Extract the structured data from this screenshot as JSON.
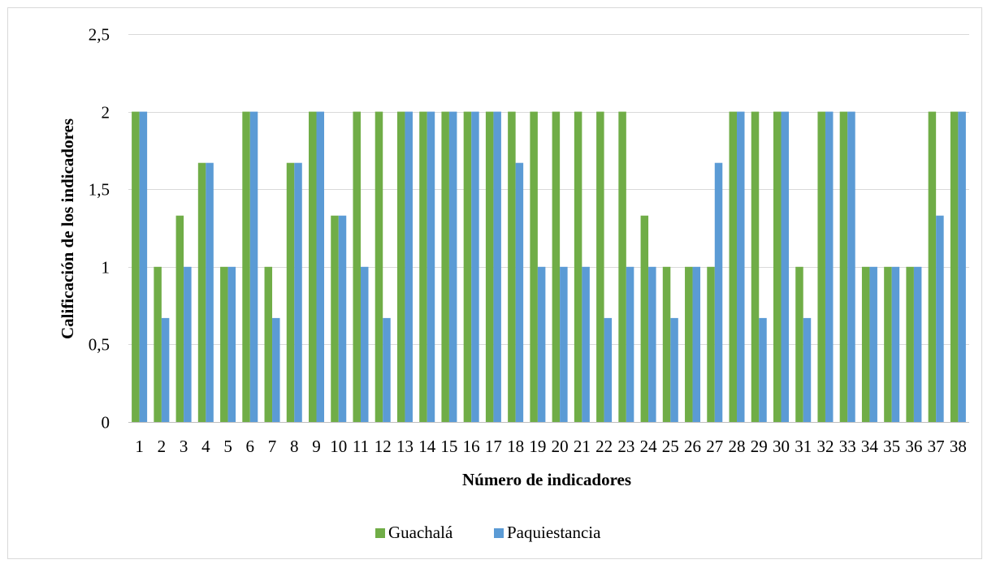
{
  "chart_data": {
    "type": "bar",
    "title": "",
    "xlabel": "Número de indicadores",
    "ylabel": "Calificación de los indicadores",
    "ylim": [
      0,
      2.5
    ],
    "yticks": [
      "0",
      "0,5",
      "1",
      "1,5",
      "2",
      "2,5"
    ],
    "y_tick_values": [
      0,
      0.5,
      1,
      1.5,
      2,
      2.5
    ],
    "grid": true,
    "legend_position": "bottom",
    "categories": [
      "1",
      "2",
      "3",
      "4",
      "5",
      "6",
      "7",
      "8",
      "9",
      "10",
      "11",
      "12",
      "13",
      "14",
      "15",
      "16",
      "17",
      "18",
      "19",
      "20",
      "21",
      "22",
      "23",
      "24",
      "25",
      "26",
      "27",
      "28",
      "29",
      "30",
      "31",
      "32",
      "33",
      "34",
      "35",
      "36",
      "37",
      "38"
    ],
    "series": [
      {
        "name": "Guachalá",
        "color": "#70AD47",
        "values": [
          2,
          1,
          1.33,
          1.67,
          1,
          2,
          1,
          1.67,
          2,
          1.33,
          2,
          2,
          2,
          2,
          2,
          2,
          2,
          2,
          2,
          2,
          2,
          2,
          2,
          1.33,
          1,
          1,
          1,
          2,
          2,
          2,
          1,
          2,
          2,
          1,
          1,
          1,
          2,
          2
        ]
      },
      {
        "name": "Paquiestancia",
        "color": "#5B9BD5",
        "values": [
          2,
          0.67,
          1,
          1.67,
          1,
          2,
          0.67,
          1.67,
          2,
          1.33,
          1,
          0.67,
          2,
          2,
          2,
          2,
          2,
          1.67,
          1,
          1,
          1,
          0.67,
          1,
          1,
          0.67,
          1,
          1.67,
          2,
          0.67,
          2,
          0.67,
          2,
          2,
          1,
          1,
          1,
          1.33,
          2
        ]
      }
    ]
  }
}
